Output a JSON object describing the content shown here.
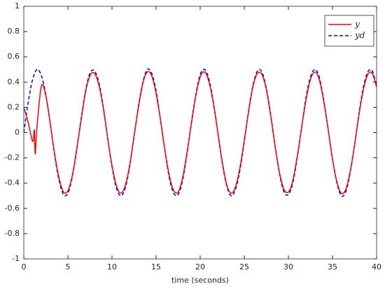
{
  "chart_data": {
    "type": "line",
    "xlabel": "time (seconds)",
    "xlim": [
      0,
      40
    ],
    "xticks": [
      0,
      5,
      10,
      15,
      20,
      25,
      30,
      35,
      40
    ],
    "ylim": [
      -1,
      1
    ],
    "yticks": [
      -1,
      -0.8,
      -0.6,
      -0.4,
      -0.2,
      0,
      0.2,
      0.4,
      0.6,
      0.8,
      1
    ],
    "legend": "upper right",
    "series": [
      {
        "name": "y",
        "color": "#ff0000",
        "linestyle": "solid",
        "x": [
          0,
          0.5,
          1,
          1.2,
          1.3,
          1.5,
          2,
          2.5,
          3,
          3.5,
          4,
          4.5,
          5,
          5.5,
          6,
          6.5,
          7,
          7.5,
          8,
          8.5,
          9,
          9.5,
          10,
          10.5,
          11,
          11.5,
          12,
          12.5,
          13,
          13.5,
          14,
          14.5,
          15,
          15.5,
          16,
          16.5,
          17,
          17.5,
          18,
          18.5,
          19,
          19.5,
          20,
          20.5,
          21,
          21.5,
          22,
          22.5,
          23,
          23.5,
          24,
          24.5,
          25,
          25.5,
          26,
          26.5,
          27,
          27.5,
          28,
          28.5,
          29,
          29.5,
          30,
          30.5,
          31,
          31.5,
          32,
          32.5,
          33,
          33.5,
          34,
          34.5,
          35,
          35.5,
          36,
          36.5,
          37,
          37.5,
          38,
          38.5,
          39,
          39.5,
          40
        ],
        "values": [
          0.2,
          0.08,
          -0.07,
          0.02,
          -0.17,
          0.05,
          0.37,
          0.29,
          0.07,
          -0.17,
          -0.36,
          -0.47,
          -0.46,
          -0.34,
          -0.13,
          0.1,
          0.32,
          0.45,
          0.47,
          0.38,
          0.2,
          -0.04,
          -0.26,
          -0.42,
          -0.48,
          -0.42,
          -0.26,
          -0.03,
          0.2,
          0.39,
          0.48,
          0.45,
          0.31,
          0.1,
          -0.14,
          -0.34,
          -0.46,
          -0.47,
          -0.36,
          -0.16,
          0.07,
          0.29,
          0.44,
          0.48,
          0.4,
          0.23,
          0,
          -0.23,
          -0.41,
          -0.48,
          -0.43,
          -0.28,
          -0.06,
          0.17,
          0.37,
          0.47,
          0.46,
          0.34,
          0.13,
          -0.11,
          -0.32,
          -0.45,
          -0.47,
          -0.38,
          -0.19,
          0.04,
          0.26,
          0.42,
          0.48,
          0.42,
          0.25,
          0.03,
          -0.21,
          -0.39,
          -0.48,
          -0.45,
          -0.31,
          -0.1,
          0.14,
          0.34,
          0.46,
          0.47,
          0.36
        ]
      },
      {
        "name": "yd",
        "color": "#0000ff",
        "linestyle": "dashed",
        "x": [
          0,
          0.5,
          1,
          1.5,
          2,
          2.5,
          3,
          3.5,
          4,
          4.5,
          5,
          5.5,
          6,
          6.5,
          7,
          7.5,
          8,
          8.5,
          9,
          9.5,
          10,
          10.5,
          11,
          11.5,
          12,
          12.5,
          13,
          13.5,
          14,
          14.5,
          15,
          15.5,
          16,
          16.5,
          17,
          17.5,
          18,
          18.5,
          19,
          19.5,
          20,
          20.5,
          21,
          21.5,
          22,
          22.5,
          23,
          23.5,
          24,
          24.5,
          25,
          25.5,
          26,
          26.5,
          27,
          27.5,
          28,
          28.5,
          29,
          29.5,
          30,
          30.5,
          31,
          31.5,
          32,
          32.5,
          33,
          33.5,
          34,
          34.5,
          35,
          35.5,
          36,
          36.5,
          37,
          37.5,
          38,
          38.5,
          39,
          39.5,
          40
        ],
        "values": [
          0,
          0.24,
          0.42,
          0.5,
          0.45,
          0.3,
          0.07,
          -0.18,
          -0.38,
          -0.49,
          -0.48,
          -0.35,
          -0.14,
          0.11,
          0.33,
          0.47,
          0.49,
          0.4,
          0.21,
          -0.04,
          -0.27,
          -0.44,
          -0.5,
          -0.44,
          -0.27,
          -0.03,
          0.21,
          0.4,
          0.5,
          0.47,
          0.33,
          0.1,
          -0.14,
          -0.36,
          -0.48,
          -0.49,
          -0.38,
          -0.17,
          0.08,
          0.3,
          0.46,
          0.5,
          0.42,
          0.24,
          0,
          -0.24,
          -0.42,
          -0.5,
          -0.45,
          -0.3,
          -0.07,
          0.18,
          0.38,
          0.49,
          0.48,
          0.35,
          0.14,
          -0.11,
          -0.33,
          -0.47,
          -0.49,
          -0.4,
          -0.2,
          0.04,
          0.28,
          0.44,
          0.5,
          0.44,
          0.26,
          0.03,
          -0.21,
          -0.4,
          -0.5,
          -0.47,
          -0.32,
          -0.1,
          0.15,
          0.36,
          0.48,
          0.49,
          0.37
        ]
      }
    ]
  }
}
